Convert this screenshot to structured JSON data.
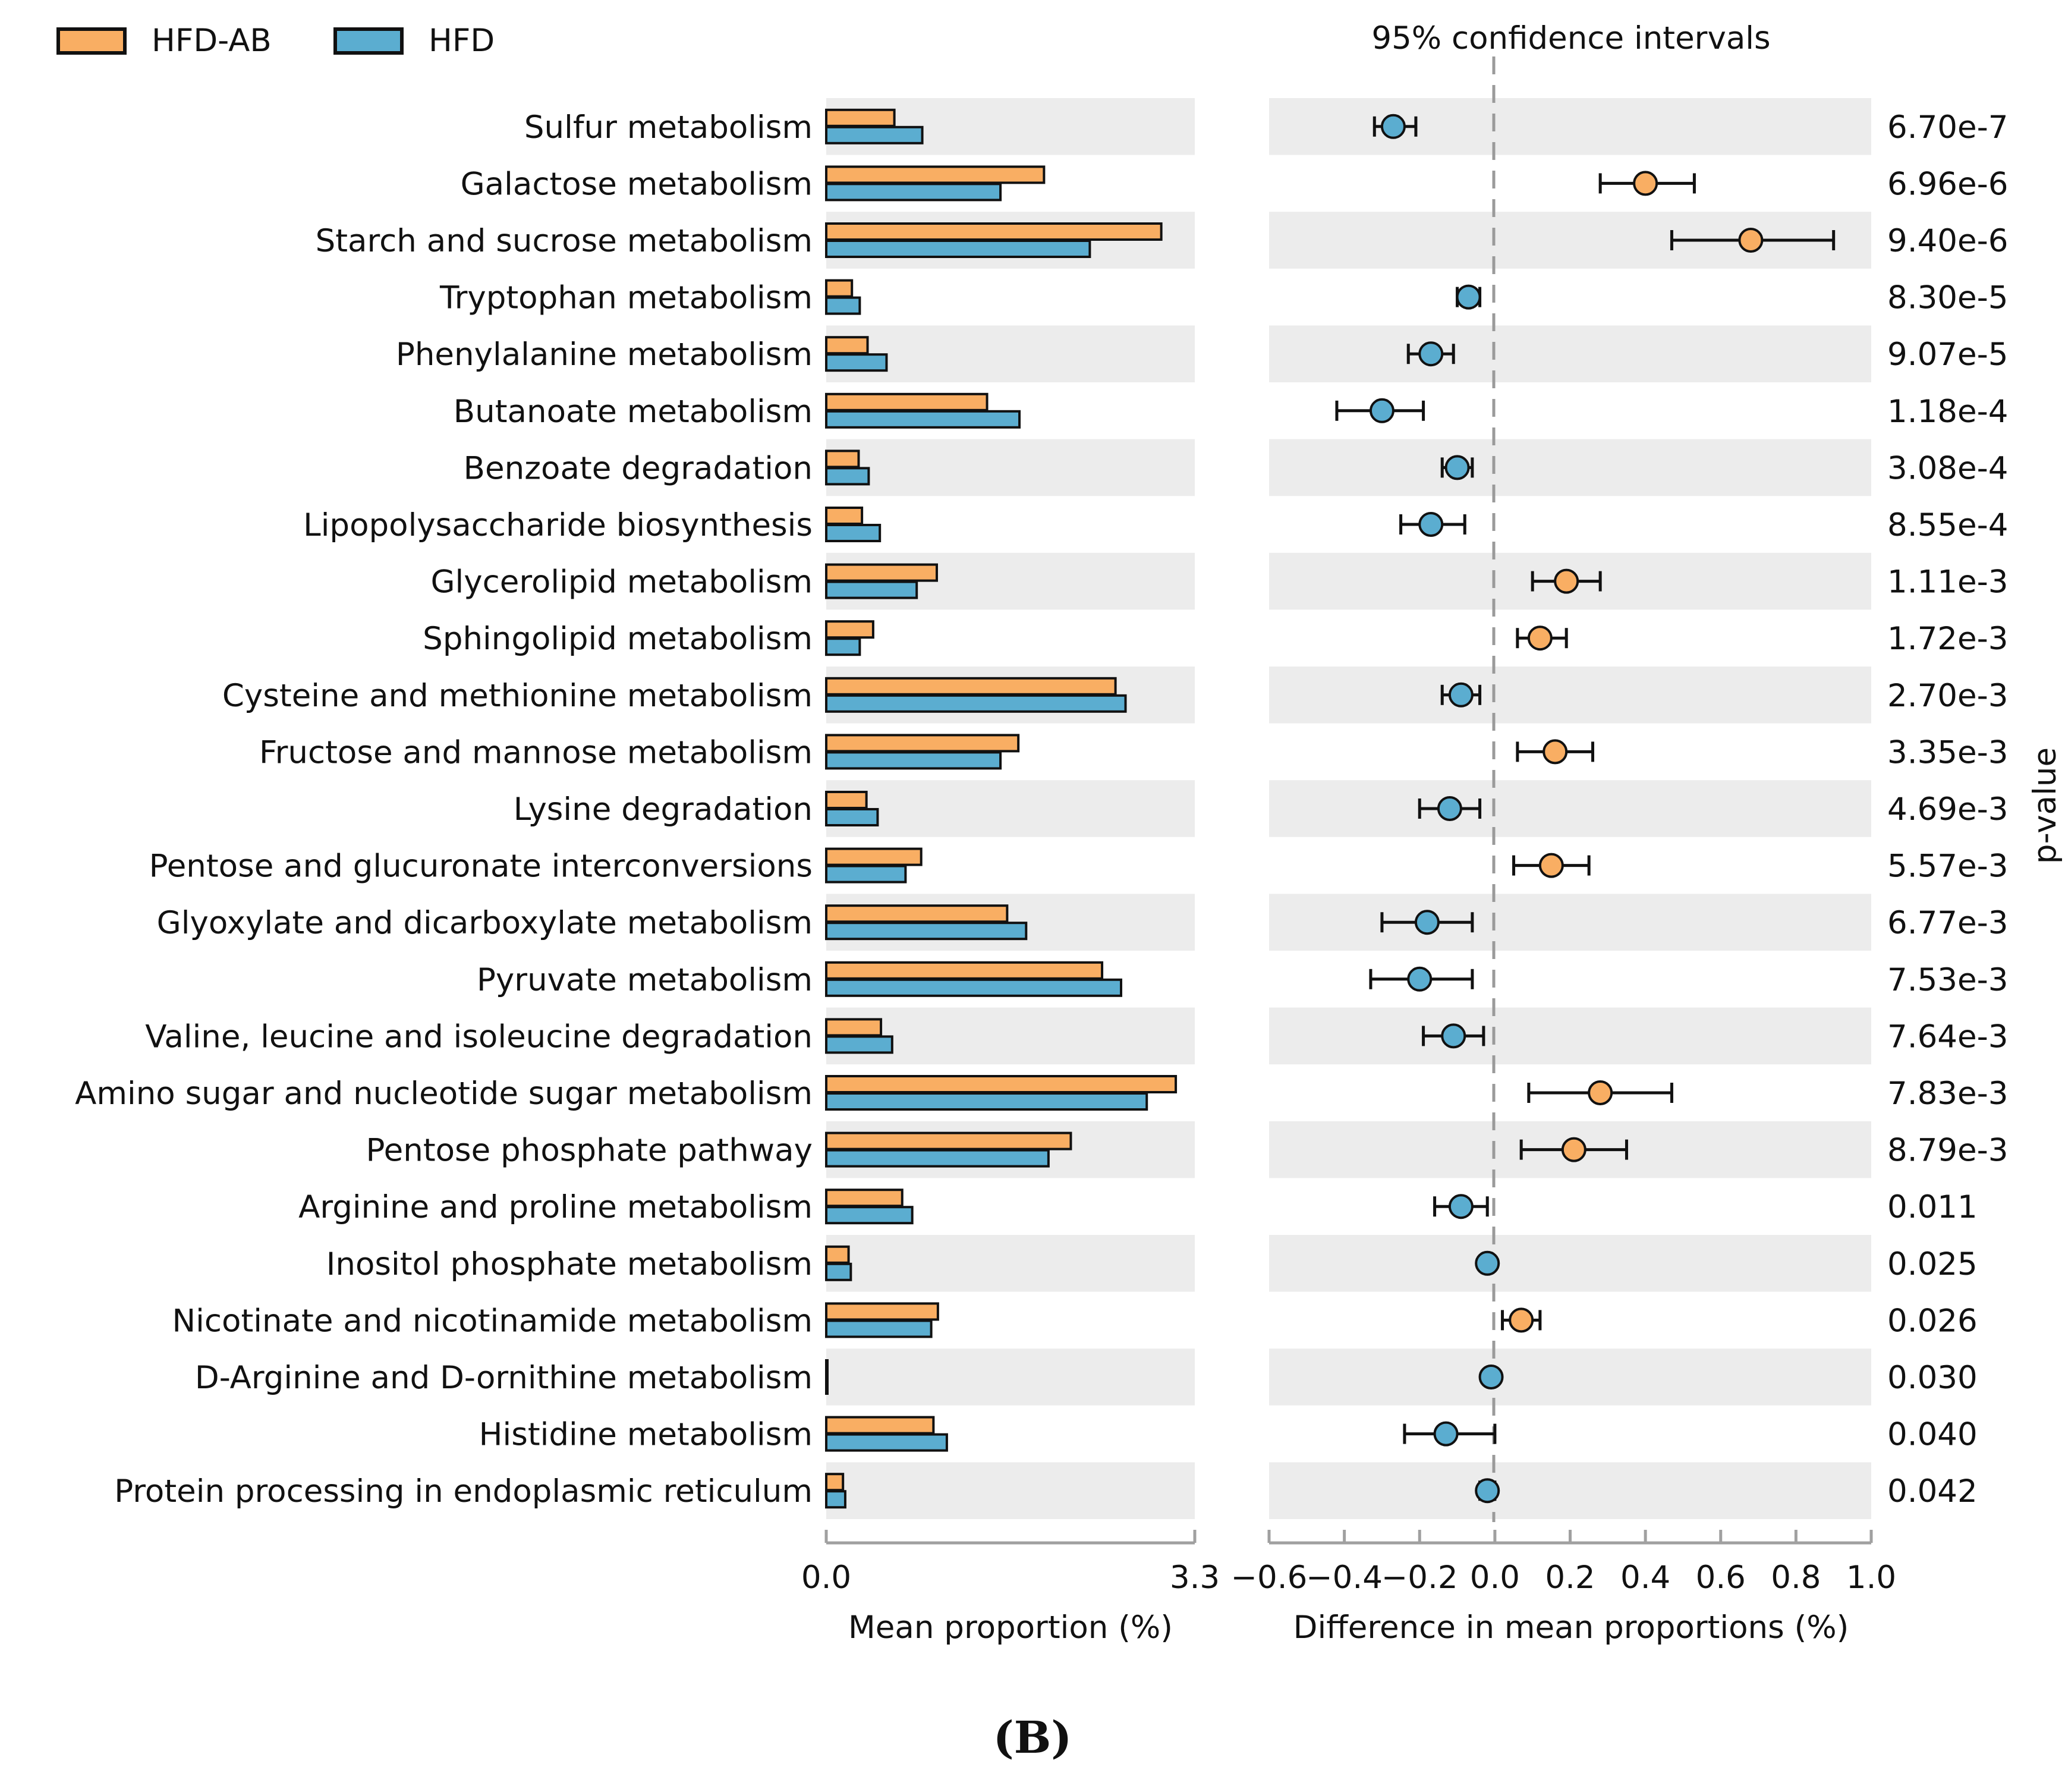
{
  "colors": {
    "hfd_ab": "#f9ae63",
    "hfd": "#5badd0",
    "stripe": "#ececec",
    "axis": "#a0a0a0",
    "zero_line": "#9a9a9a"
  },
  "legend": {
    "items": [
      {
        "name": "HFD-AB",
        "color": "#f9ae63"
      },
      {
        "name": "HFD",
        "color": "#5badd0"
      }
    ]
  },
  "ci_title": "95% confidence intervals",
  "pvalue_label": "p-value",
  "panel_label": "(B)",
  "chart_data": {
    "type": "bar",
    "categories": [
      "Sulfur metabolism",
      "Galactose metabolism",
      "Starch and sucrose metabolism",
      "Tryptophan metabolism",
      "Phenylalanine metabolism",
      "Butanoate metabolism",
      "Benzoate degradation",
      "Lipopolysaccharide biosynthesis",
      "Glycerolipid metabolism",
      "Sphingolipid metabolism",
      "Cysteine and methionine metabolism",
      "Fructose and mannose metabolism",
      "Lysine degradation",
      "Pentose and glucuronate interconversions",
      "Glyoxylate and dicarboxylate metabolism",
      "Pyruvate metabolism",
      "Valine, leucine and isoleucine degradation",
      "Amino sugar and nucleotide sugar metabolism",
      "Pentose phosphate pathway",
      "Arginine and proline metabolism",
      "Inositol phosphate metabolism",
      "Nicotinate and nicotinamide metabolism",
      "D-Arginine and D-ornithine metabolism",
      "Histidine metabolism",
      "Protein processing in endoplasmic reticulum"
    ],
    "series": [
      {
        "name": "HFD-AB",
        "values": [
          0.61,
          1.95,
          3.0,
          0.23,
          0.37,
          1.44,
          0.29,
          0.32,
          0.99,
          0.42,
          2.59,
          1.72,
          0.36,
          0.85,
          1.62,
          2.47,
          0.49,
          3.13,
          2.19,
          0.68,
          0.2,
          1.0,
          0.01,
          0.96,
          0.15
        ]
      },
      {
        "name": "HFD",
        "values": [
          0.86,
          1.56,
          2.36,
          0.3,
          0.54,
          1.73,
          0.38,
          0.48,
          0.81,
          0.3,
          2.68,
          1.56,
          0.46,
          0.71,
          1.79,
          2.64,
          0.59,
          2.87,
          1.99,
          0.77,
          0.22,
          0.94,
          0.01,
          1.08,
          0.17
        ]
      }
    ],
    "differences": [
      -0.27,
      0.4,
      0.68,
      -0.07,
      -0.17,
      -0.3,
      -0.1,
      -0.17,
      0.19,
      0.12,
      -0.09,
      0.16,
      -0.12,
      0.15,
      -0.18,
      -0.2,
      -0.11,
      0.28,
      0.21,
      -0.09,
      -0.02,
      0.07,
      -0.01,
      -0.13,
      -0.02
    ],
    "ci_low": [
      -0.32,
      0.28,
      0.47,
      -0.1,
      -0.23,
      -0.42,
      -0.14,
      -0.25,
      0.1,
      0.06,
      -0.14,
      0.06,
      -0.2,
      0.05,
      -0.3,
      -0.33,
      -0.19,
      0.09,
      0.07,
      -0.16,
      -0.03,
      0.02,
      -0.02,
      -0.24,
      -0.04
    ],
    "ci_high": [
      -0.21,
      0.53,
      0.9,
      -0.04,
      -0.11,
      -0.19,
      -0.06,
      -0.08,
      0.28,
      0.19,
      -0.04,
      0.26,
      -0.04,
      0.25,
      -0.06,
      -0.06,
      -0.03,
      0.47,
      0.35,
      -0.02,
      -0.01,
      0.12,
      0.0,
      0.0,
      0.0
    ],
    "higher_group": [
      "HFD",
      "HFD-AB",
      "HFD-AB",
      "HFD",
      "HFD",
      "HFD",
      "HFD",
      "HFD",
      "HFD-AB",
      "HFD-AB",
      "HFD",
      "HFD-AB",
      "HFD",
      "HFD-AB",
      "HFD",
      "HFD",
      "HFD",
      "HFD-AB",
      "HFD-AB",
      "HFD",
      "HFD",
      "HFD-AB",
      "HFD",
      "HFD",
      "HFD"
    ],
    "p_values": [
      "6.70e-7",
      "6.96e-6",
      "9.40e-6",
      "8.30e-5",
      "9.07e-5",
      "1.18e-4",
      "3.08e-4",
      "8.55e-4",
      "1.11e-3",
      "1.72e-3",
      "2.70e-3",
      "3.35e-3",
      "4.69e-3",
      "5.57e-3",
      "6.77e-3",
      "7.53e-3",
      "7.64e-3",
      "7.83e-3",
      "8.79e-3",
      "0.011",
      "0.025",
      "0.026",
      "0.030",
      "0.040",
      "0.042"
    ],
    "left_axis": {
      "label": "Mean proportion (%)",
      "range": [
        0.0,
        3.3
      ],
      "ticks": [
        "0.0",
        "3.3"
      ]
    },
    "right_axis": {
      "label": "Difference in mean proportions (%)",
      "range": [
        -0.6,
        1.0
      ],
      "ticks": [
        "−0.6",
        "−0.4",
        "−0.2",
        "0.0",
        "0.2",
        "0.4",
        "0.6",
        "0.8",
        "1.0"
      ]
    }
  }
}
